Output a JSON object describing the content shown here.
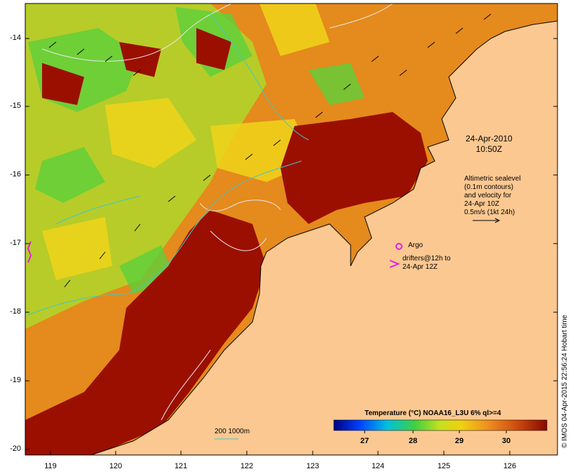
{
  "map": {
    "date": "24-Apr-2010",
    "time": "10:50Z",
    "y_ticks": [
      "-14",
      "-15",
      "-16",
      "-17",
      "-18",
      "-19",
      "-20"
    ],
    "x_ticks": [
      "119",
      "120",
      "121",
      "122",
      "123",
      "124",
      "125",
      "126"
    ],
    "altimetry_lines": [
      "Altimetric sealevel",
      "(0.1m contours)",
      "and velocity for",
      "24-Apr 10Z",
      "0.5m/s (1kt 24h)"
    ],
    "legend_argo": "Argo",
    "legend_drifters_line1": "drifters@12h to",
    "legend_drifters_line2": "24-Apr 12Z",
    "depth_label": "200  1000m",
    "colorbar_title": "Temperature (°C) NOAA16_L3U 6% ql>=4",
    "colorbar_ticks": [
      "27",
      "28",
      "29",
      "30"
    ],
    "credit": "© IMOS 04-Apr-2015 22:56:24 Hobart time",
    "colors": {
      "land": "#fcc891",
      "sst_hot": "#9b0f00",
      "sst_warm": "#d9600e",
      "sst_mid": "#f29c1f",
      "sst_yellow": "#e9d21a",
      "sst_green": "#4fd13b",
      "contour": "#e8e8e8",
      "bathymetry": "#40c8c8",
      "argo": "#e020e0"
    }
  }
}
